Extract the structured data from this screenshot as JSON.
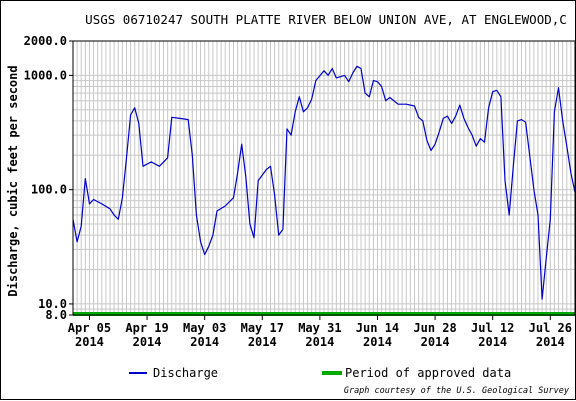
{
  "chart_data": {
    "type": "line",
    "title": "USGS 06710247 SOUTH PLATTE RIVER BELOW UNION AVE, AT ENGLEWOOD,C",
    "ylabel": "Discharge, cubic feet per second",
    "xlabel": "",
    "y_scale": "log",
    "ylim": [
      8.0,
      2000.0
    ],
    "y_ticks": [
      {
        "value": 8.0,
        "label": "8.0"
      },
      {
        "value": 10.0,
        "label": "10.0"
      },
      {
        "value": 100.0,
        "label": "100.0"
      },
      {
        "value": 1000.0,
        "label": "1000.0"
      },
      {
        "value": 2000.0,
        "label": "2000.0"
      }
    ],
    "xlim": [
      "2014-04-01",
      "2014-08-01"
    ],
    "x_ticks": [
      {
        "date": "2014-04-05",
        "label": "Apr 05",
        "year": "2014"
      },
      {
        "date": "2014-04-19",
        "label": "Apr 19",
        "year": "2014"
      },
      {
        "date": "2014-05-03",
        "label": "May 03",
        "year": "2014"
      },
      {
        "date": "2014-05-17",
        "label": "May 17",
        "year": "2014"
      },
      {
        "date": "2014-05-31",
        "label": "May 31",
        "year": "2014"
      },
      {
        "date": "2014-06-14",
        "label": "Jun 14",
        "year": "2014"
      },
      {
        "date": "2014-06-28",
        "label": "Jun 28",
        "year": "2014"
      },
      {
        "date": "2014-07-12",
        "label": "Jul 12",
        "year": "2014"
      },
      {
        "date": "2014-07-26",
        "label": "Jul 26",
        "year": "2014"
      }
    ],
    "grid": true,
    "legend_position": "bottom",
    "series": [
      {
        "name": "Discharge",
        "color": "#0000cc",
        "points": [
          {
            "x": "2014-04-01",
            "y": 55
          },
          {
            "x": "2014-04-02",
            "y": 35
          },
          {
            "x": "2014-04-03",
            "y": 48
          },
          {
            "x": "2014-04-04",
            "y": 125
          },
          {
            "x": "2014-04-05",
            "y": 75
          },
          {
            "x": "2014-04-06",
            "y": 82
          },
          {
            "x": "2014-04-08",
            "y": 75
          },
          {
            "x": "2014-04-10",
            "y": 68
          },
          {
            "x": "2014-04-11",
            "y": 60
          },
          {
            "x": "2014-04-12",
            "y": 55
          },
          {
            "x": "2014-04-13",
            "y": 85
          },
          {
            "x": "2014-04-14",
            "y": 190
          },
          {
            "x": "2014-04-15",
            "y": 450
          },
          {
            "x": "2014-04-16",
            "y": 520
          },
          {
            "x": "2014-04-17",
            "y": 380
          },
          {
            "x": "2014-04-18",
            "y": 160
          },
          {
            "x": "2014-04-20",
            "y": 175
          },
          {
            "x": "2014-04-22",
            "y": 160
          },
          {
            "x": "2014-04-24",
            "y": 190
          },
          {
            "x": "2014-04-25",
            "y": 430
          },
          {
            "x": "2014-04-27",
            "y": 420
          },
          {
            "x": "2014-04-29",
            "y": 410
          },
          {
            "x": "2014-04-30",
            "y": 200
          },
          {
            "x": "2014-05-01",
            "y": 60
          },
          {
            "x": "2014-05-02",
            "y": 35
          },
          {
            "x": "2014-05-03",
            "y": 27
          },
          {
            "x": "2014-05-04",
            "y": 32
          },
          {
            "x": "2014-05-05",
            "y": 40
          },
          {
            "x": "2014-05-06",
            "y": 65
          },
          {
            "x": "2014-05-08",
            "y": 72
          },
          {
            "x": "2014-05-10",
            "y": 85
          },
          {
            "x": "2014-05-11",
            "y": 140
          },
          {
            "x": "2014-05-12",
            "y": 250
          },
          {
            "x": "2014-05-13",
            "y": 130
          },
          {
            "x": "2014-05-14",
            "y": 50
          },
          {
            "x": "2014-05-15",
            "y": 38
          },
          {
            "x": "2014-05-16",
            "y": 120
          },
          {
            "x": "2014-05-18",
            "y": 150
          },
          {
            "x": "2014-05-19",
            "y": 160
          },
          {
            "x": "2014-05-20",
            "y": 90
          },
          {
            "x": "2014-05-21",
            "y": 40
          },
          {
            "x": "2014-05-22",
            "y": 45
          },
          {
            "x": "2014-05-23",
            "y": 340
          },
          {
            "x": "2014-05-24",
            "y": 300
          },
          {
            "x": "2014-05-25",
            "y": 480
          },
          {
            "x": "2014-05-26",
            "y": 650
          },
          {
            "x": "2014-05-27",
            "y": 480
          },
          {
            "x": "2014-05-28",
            "y": 520
          },
          {
            "x": "2014-05-29",
            "y": 620
          },
          {
            "x": "2014-05-30",
            "y": 900
          },
          {
            "x": "2014-06-01",
            "y": 1100
          },
          {
            "x": "2014-06-02",
            "y": 1000
          },
          {
            "x": "2014-06-03",
            "y": 1150
          },
          {
            "x": "2014-06-04",
            "y": 950
          },
          {
            "x": "2014-06-06",
            "y": 1000
          },
          {
            "x": "2014-06-07",
            "y": 880
          },
          {
            "x": "2014-06-08",
            "y": 1050
          },
          {
            "x": "2014-06-09",
            "y": 1200
          },
          {
            "x": "2014-06-10",
            "y": 1150
          },
          {
            "x": "2014-06-11",
            "y": 700
          },
          {
            "x": "2014-06-12",
            "y": 650
          },
          {
            "x": "2014-06-13",
            "y": 900
          },
          {
            "x": "2014-06-14",
            "y": 880
          },
          {
            "x": "2014-06-15",
            "y": 800
          },
          {
            "x": "2014-06-16",
            "y": 600
          },
          {
            "x": "2014-06-17",
            "y": 640
          },
          {
            "x": "2014-06-19",
            "y": 560
          },
          {
            "x": "2014-06-21",
            "y": 560
          },
          {
            "x": "2014-06-23",
            "y": 540
          },
          {
            "x": "2014-06-24",
            "y": 430
          },
          {
            "x": "2014-06-25",
            "y": 400
          },
          {
            "x": "2014-06-26",
            "y": 270
          },
          {
            "x": "2014-06-27",
            "y": 220
          },
          {
            "x": "2014-06-28",
            "y": 250
          },
          {
            "x": "2014-06-29",
            "y": 320
          },
          {
            "x": "2014-06-30",
            "y": 420
          },
          {
            "x": "2014-07-01",
            "y": 440
          },
          {
            "x": "2014-07-02",
            "y": 380
          },
          {
            "x": "2014-07-03",
            "y": 440
          },
          {
            "x": "2014-07-04",
            "y": 550
          },
          {
            "x": "2014-07-05",
            "y": 420
          },
          {
            "x": "2014-07-06",
            "y": 350
          },
          {
            "x": "2014-07-07",
            "y": 300
          },
          {
            "x": "2014-07-08",
            "y": 240
          },
          {
            "x": "2014-07-09",
            "y": 280
          },
          {
            "x": "2014-07-10",
            "y": 260
          },
          {
            "x": "2014-07-11",
            "y": 520
          },
          {
            "x": "2014-07-12",
            "y": 720
          },
          {
            "x": "2014-07-13",
            "y": 740
          },
          {
            "x": "2014-07-14",
            "y": 650
          },
          {
            "x": "2014-07-15",
            "y": 120
          },
          {
            "x": "2014-07-16",
            "y": 60
          },
          {
            "x": "2014-07-17",
            "y": 160
          },
          {
            "x": "2014-07-18",
            "y": 400
          },
          {
            "x": "2014-07-19",
            "y": 410
          },
          {
            "x": "2014-07-20",
            "y": 390
          },
          {
            "x": "2014-07-21",
            "y": 200
          },
          {
            "x": "2014-07-22",
            "y": 100
          },
          {
            "x": "2014-07-23",
            "y": 60
          },
          {
            "x": "2014-07-24",
            "y": 11
          },
          {
            "x": "2014-07-25",
            "y": 25
          },
          {
            "x": "2014-07-26",
            "y": 55
          },
          {
            "x": "2014-07-27",
            "y": 480
          },
          {
            "x": "2014-07-28",
            "y": 780
          },
          {
            "x": "2014-07-29",
            "y": 400
          },
          {
            "x": "2014-07-30",
            "y": 240
          },
          {
            "x": "2014-07-31",
            "y": 140
          },
          {
            "x": "2014-08-01",
            "y": 95
          }
        ]
      },
      {
        "name": "Period of approved data",
        "color": "#00aa00",
        "start": "2014-04-01",
        "end": "2014-08-01"
      }
    ],
    "credit": "Graph courtesy of the U.S. Geological Survey"
  }
}
